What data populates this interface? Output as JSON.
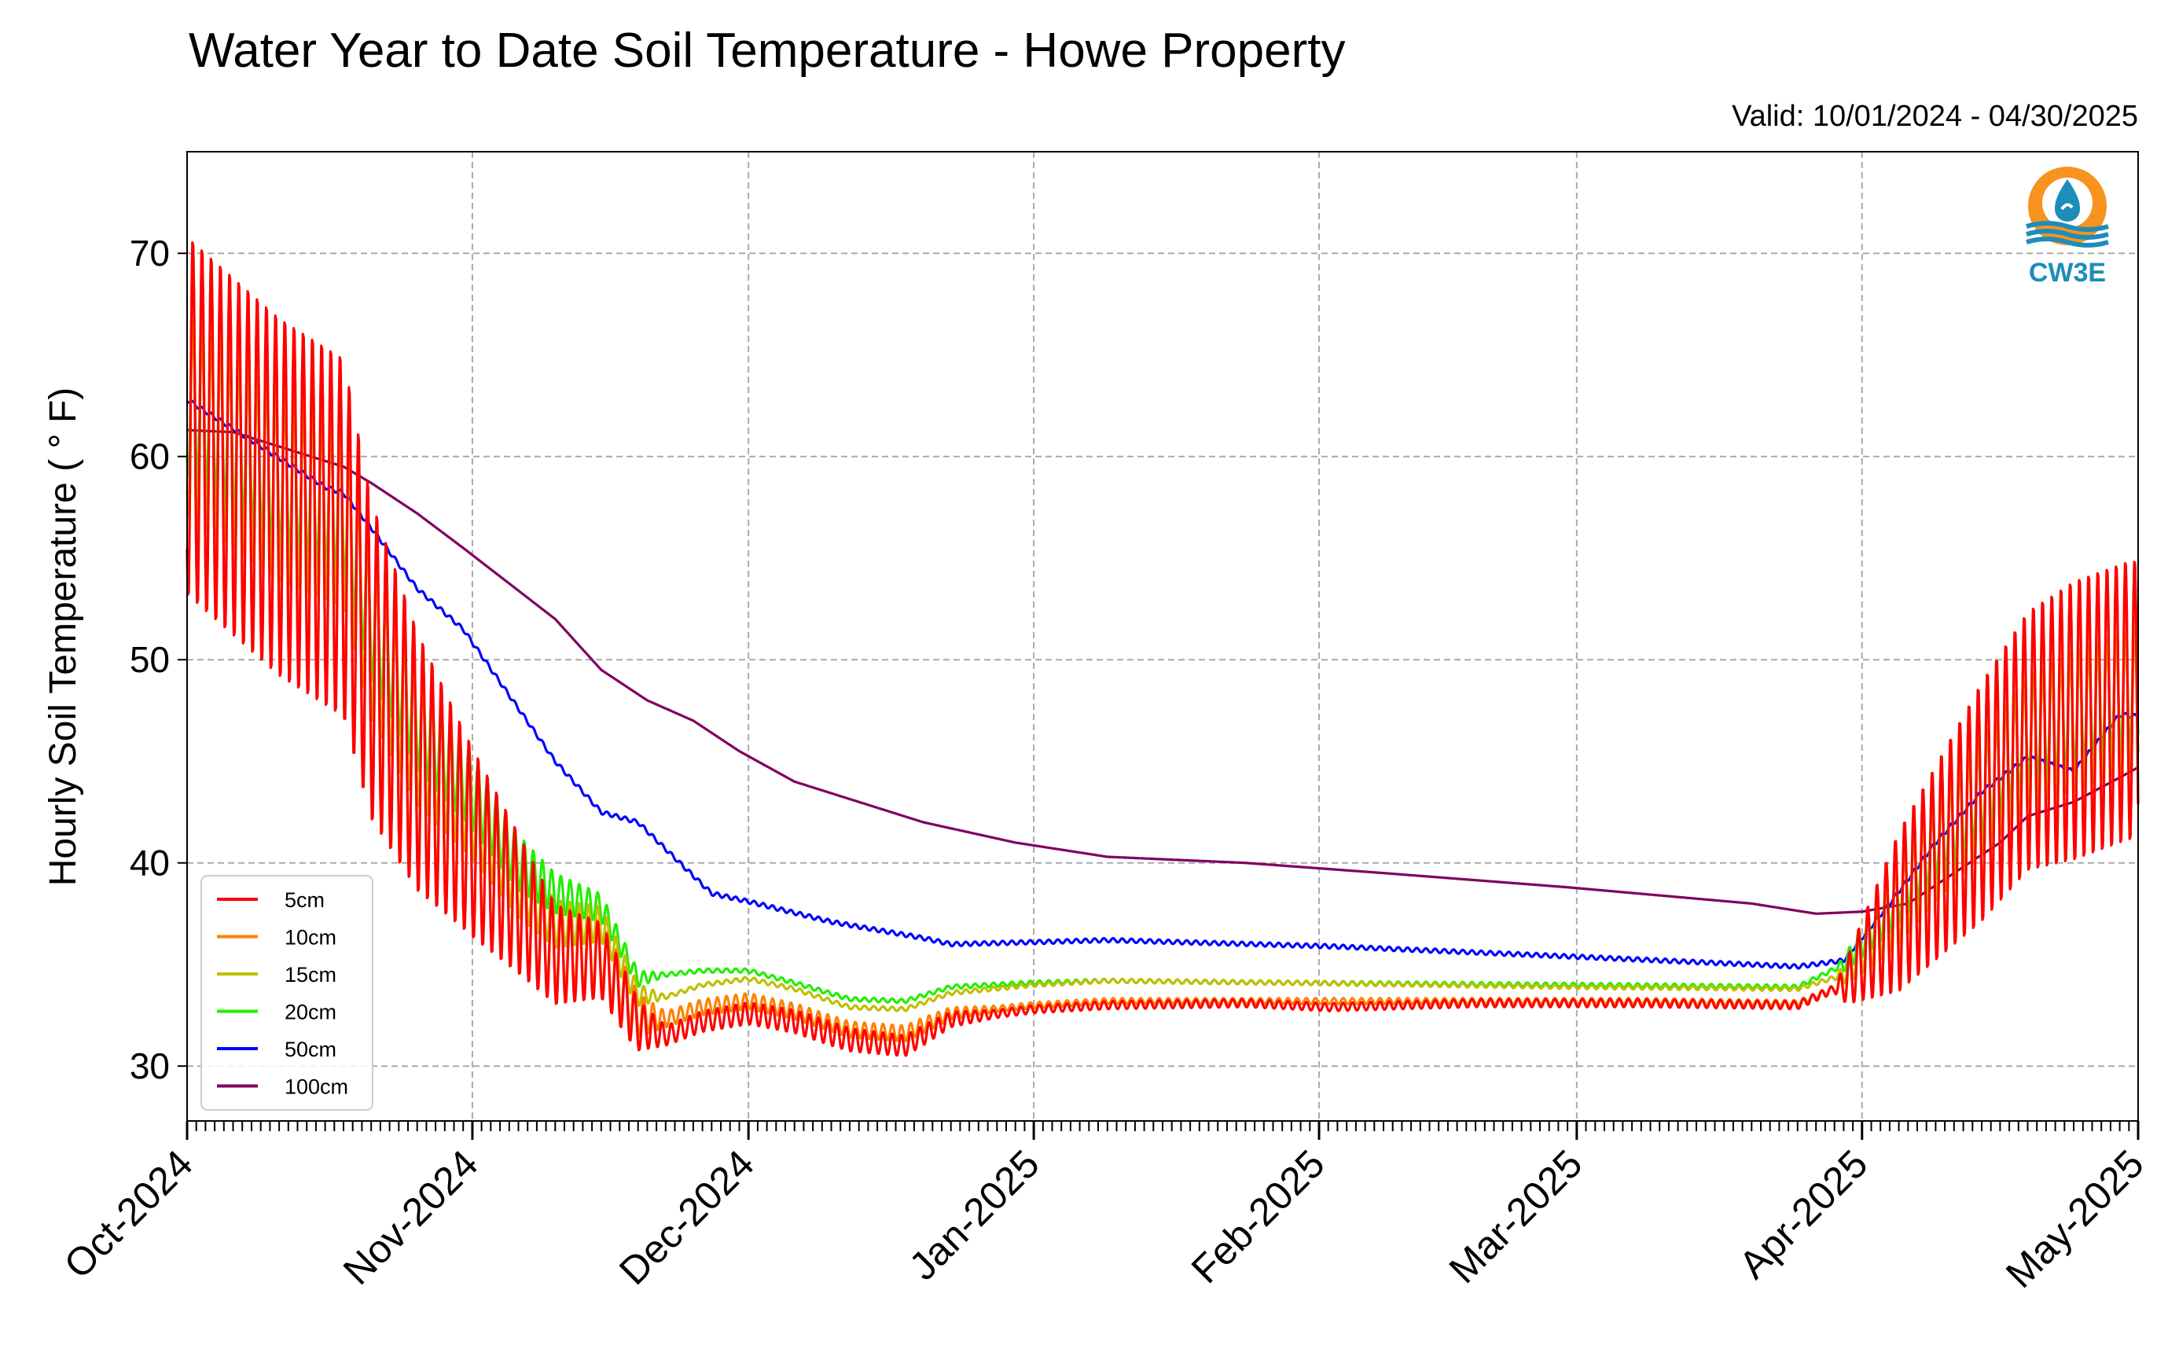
{
  "chart_data": {
    "type": "line",
    "title": "Water Year to Date Soil Temperature - Howe Property",
    "subtitle": "Valid: 10/01/2024 - 04/30/2025",
    "xlabel": "",
    "ylabel": "Hourly Soil Temperature ( ° F)",
    "ylim": [
      27.3,
      75
    ],
    "yticks": [
      30,
      40,
      50,
      60,
      70
    ],
    "xlim": [
      "2024-10-01",
      "2025-05-01"
    ],
    "xticks": [
      "2024-10-01",
      "2024-11-01",
      "2024-12-01",
      "2025-01-01",
      "2025-02-01",
      "2025-03-01",
      "2025-04-01",
      "2025-05-01"
    ],
    "xtick_labels": [
      "Oct-2024",
      "Nov-2024",
      "Dec-2024",
      "Jan-2025",
      "Feb-2025",
      "Mar-2025",
      "Apr-2025",
      "May-2025"
    ],
    "grid": true,
    "legend_position": "lower-left",
    "series": [
      {
        "name": "5cm",
        "color": "#ff0000",
        "mean": [
          [
            0,
            62
          ],
          [
            10,
            58
          ],
          [
            17,
            56
          ],
          [
            20,
            50
          ],
          [
            25,
            45
          ],
          [
            31,
            41
          ],
          [
            36,
            38
          ],
          [
            40,
            35.5
          ],
          [
            45,
            35.2
          ],
          [
            49,
            32
          ],
          [
            52,
            31.5
          ],
          [
            56,
            32.2
          ],
          [
            61,
            32.6
          ],
          [
            66,
            32.2
          ],
          [
            72,
            31.3
          ],
          [
            78,
            31
          ],
          [
            83,
            32.3
          ],
          [
            92,
            32.8
          ],
          [
            100,
            33
          ],
          [
            115,
            33.1
          ],
          [
            124,
            32.9
          ],
          [
            140,
            33.1
          ],
          [
            158,
            33.1
          ],
          [
            175,
            33
          ],
          [
            180,
            34
          ],
          [
            185,
            37
          ],
          [
            190,
            40
          ],
          [
            195,
            43
          ],
          [
            200,
            46
          ],
          [
            205,
            47
          ],
          [
            211,
            48
          ],
          [
            212,
            48
          ]
        ],
        "amp": [
          [
            0,
            9
          ],
          [
            17,
            9
          ],
          [
            20,
            8
          ],
          [
            30,
            5
          ],
          [
            40,
            2.5
          ],
          [
            48,
            1.5
          ],
          [
            52,
            0.5
          ],
          [
            70,
            0.6
          ],
          [
            80,
            0.5
          ],
          [
            88,
            0.2
          ],
          [
            179,
            0.2
          ],
          [
            181,
            1.5
          ],
          [
            186,
            4
          ],
          [
            195,
            6
          ],
          [
            205,
            7
          ],
          [
            212,
            7
          ]
        ]
      },
      {
        "name": "10cm",
        "color": "#ff8000",
        "mean": [
          [
            0,
            62
          ],
          [
            10,
            58
          ],
          [
            17,
            56
          ],
          [
            20,
            50
          ],
          [
            25,
            45
          ],
          [
            31,
            41
          ],
          [
            36,
            38
          ],
          [
            40,
            35.8
          ],
          [
            45,
            35.5
          ],
          [
            49,
            32.5
          ],
          [
            52,
            32.3
          ],
          [
            56,
            32.9
          ],
          [
            61,
            33.2
          ],
          [
            66,
            32.7
          ],
          [
            72,
            31.8
          ],
          [
            78,
            31.6
          ],
          [
            83,
            32.6
          ],
          [
            92,
            33
          ],
          [
            100,
            33.2
          ],
          [
            158,
            33.2
          ],
          [
            175,
            33.1
          ],
          [
            180,
            34
          ],
          [
            185,
            37
          ],
          [
            190,
            40
          ],
          [
            195,
            43
          ],
          [
            200,
            46
          ],
          [
            205,
            47
          ],
          [
            211,
            48
          ],
          [
            212,
            48
          ]
        ],
        "amp": [
          [
            0,
            9
          ],
          [
            17,
            8.5
          ],
          [
            20,
            7.5
          ],
          [
            30,
            4.5
          ],
          [
            40,
            2.2
          ],
          [
            48,
            1.3
          ],
          [
            52,
            0.4
          ],
          [
            70,
            0.4
          ],
          [
            80,
            0.4
          ],
          [
            88,
            0.15
          ],
          [
            179,
            0.15
          ],
          [
            181,
            1.4
          ],
          [
            186,
            3.8
          ],
          [
            195,
            5.8
          ],
          [
            205,
            6.8
          ],
          [
            212,
            6.8
          ]
        ]
      },
      {
        "name": "15cm",
        "color": "#bfbf00",
        "mean": [
          [
            0,
            62
          ],
          [
            10,
            58.5
          ],
          [
            17,
            57
          ],
          [
            20,
            51
          ],
          [
            25,
            46
          ],
          [
            31,
            42.5
          ],
          [
            36,
            39
          ],
          [
            40,
            37
          ],
          [
            45,
            37
          ],
          [
            49,
            33.5
          ],
          [
            52,
            33.4
          ],
          [
            56,
            34
          ],
          [
            61,
            34.3
          ],
          [
            66,
            33.8
          ],
          [
            72,
            32.9
          ],
          [
            78,
            32.8
          ],
          [
            83,
            33.6
          ],
          [
            92,
            34
          ],
          [
            100,
            34.2
          ],
          [
            120,
            34.1
          ],
          [
            150,
            33.9
          ],
          [
            175,
            33.8
          ],
          [
            180,
            34.5
          ],
          [
            185,
            37.3
          ],
          [
            190,
            40.5
          ],
          [
            195,
            43.3
          ],
          [
            200,
            46
          ],
          [
            205,
            47
          ],
          [
            211,
            48
          ],
          [
            212,
            48
          ]
        ],
        "amp": [
          [
            0,
            5
          ],
          [
            17,
            4.5
          ],
          [
            20,
            4
          ],
          [
            30,
            2.5
          ],
          [
            40,
            1.2
          ],
          [
            48,
            0.7
          ],
          [
            52,
            0.1
          ],
          [
            179,
            0.1
          ],
          [
            181,
            0.8
          ],
          [
            186,
            2
          ],
          [
            195,
            3
          ],
          [
            205,
            3.5
          ],
          [
            212,
            3.5
          ]
        ]
      },
      {
        "name": "20cm",
        "color": "#22ee00",
        "mean": [
          [
            0,
            63
          ],
          [
            10,
            59
          ],
          [
            17,
            57.5
          ],
          [
            20,
            52
          ],
          [
            25,
            47
          ],
          [
            31,
            43.5
          ],
          [
            36,
            40
          ],
          [
            40,
            38.5
          ],
          [
            45,
            37.8
          ],
          [
            49,
            34.3
          ],
          [
            52,
            34.5
          ],
          [
            56,
            34.7
          ],
          [
            61,
            34.7
          ],
          [
            66,
            34.1
          ],
          [
            72,
            33.3
          ],
          [
            78,
            33.2
          ],
          [
            83,
            33.9
          ],
          [
            92,
            34.1
          ],
          [
            100,
            34.2
          ],
          [
            120,
            34.1
          ],
          [
            150,
            34
          ],
          [
            175,
            33.9
          ],
          [
            180,
            35
          ],
          [
            185,
            37.8
          ],
          [
            190,
            41
          ],
          [
            195,
            43.5
          ],
          [
            200,
            46.5
          ],
          [
            205,
            47.5
          ],
          [
            211,
            48.5
          ],
          [
            212,
            48.5
          ]
        ],
        "amp": [
          [
            0,
            4
          ],
          [
            17,
            3.5
          ],
          [
            20,
            3
          ],
          [
            30,
            2
          ],
          [
            40,
            1
          ],
          [
            48,
            0.5
          ],
          [
            52,
            0.1
          ],
          [
            179,
            0.1
          ],
          [
            181,
            0.6
          ],
          [
            186,
            1.5
          ],
          [
            195,
            2.4
          ],
          [
            205,
            3
          ],
          [
            212,
            3
          ]
        ]
      },
      {
        "name": "50cm",
        "color": "#0000ff",
        "mean": [
          [
            0,
            62.8
          ],
          [
            15,
            58.5
          ],
          [
            17,
            58.2
          ],
          [
            20,
            56.5
          ],
          [
            25,
            53.5
          ],
          [
            30,
            51.5
          ],
          [
            36,
            47.6
          ],
          [
            40,
            45
          ],
          [
            45,
            42.5
          ],
          [
            49,
            42
          ],
          [
            54,
            39.8
          ],
          [
            57,
            38.5
          ],
          [
            61,
            38.1
          ],
          [
            70,
            37.1
          ],
          [
            80,
            36.3
          ],
          [
            83,
            36
          ],
          [
            92,
            36.1
          ],
          [
            100,
            36.2
          ],
          [
            124,
            35.9
          ],
          [
            150,
            35.4
          ],
          [
            170,
            35
          ],
          [
            175,
            34.9
          ],
          [
            180,
            35.2
          ],
          [
            185,
            38
          ],
          [
            190,
            41
          ],
          [
            195,
            43.5
          ],
          [
            200,
            45.2
          ],
          [
            205,
            44.5
          ],
          [
            210,
            47.3
          ],
          [
            212,
            47.2
          ]
        ],
        "amp": [
          [
            0,
            0.1
          ],
          [
            212,
            0.1
          ]
        ]
      },
      {
        "name": "100cm",
        "color": "#800060",
        "mean": [
          [
            0,
            61.3
          ],
          [
            5,
            61.2
          ],
          [
            17,
            59.5
          ],
          [
            20,
            58.7
          ],
          [
            25,
            57.2
          ],
          [
            30,
            55.5
          ],
          [
            40,
            52
          ],
          [
            45,
            49.5
          ],
          [
            50,
            48
          ],
          [
            55,
            47
          ],
          [
            60,
            45.5
          ],
          [
            66,
            44
          ],
          [
            80,
            42
          ],
          [
            90,
            41
          ],
          [
            100,
            40.3
          ],
          [
            115,
            40
          ],
          [
            130,
            39.5
          ],
          [
            150,
            38.8
          ],
          [
            170,
            38
          ],
          [
            177,
            37.5
          ],
          [
            182,
            37.6
          ],
          [
            187,
            38
          ],
          [
            192,
            39.5
          ],
          [
            197,
            41
          ],
          [
            200,
            42.3
          ],
          [
            205,
            43
          ],
          [
            210,
            44.2
          ],
          [
            212,
            44.7
          ]
        ],
        "amp": [
          [
            0,
            0
          ],
          [
            212,
            0
          ]
        ]
      }
    ],
    "logo": {
      "name": "cw3e-logo-icon",
      "text": "CW3E",
      "colors": [
        "#f7931e",
        "#1d8dba"
      ]
    }
  }
}
